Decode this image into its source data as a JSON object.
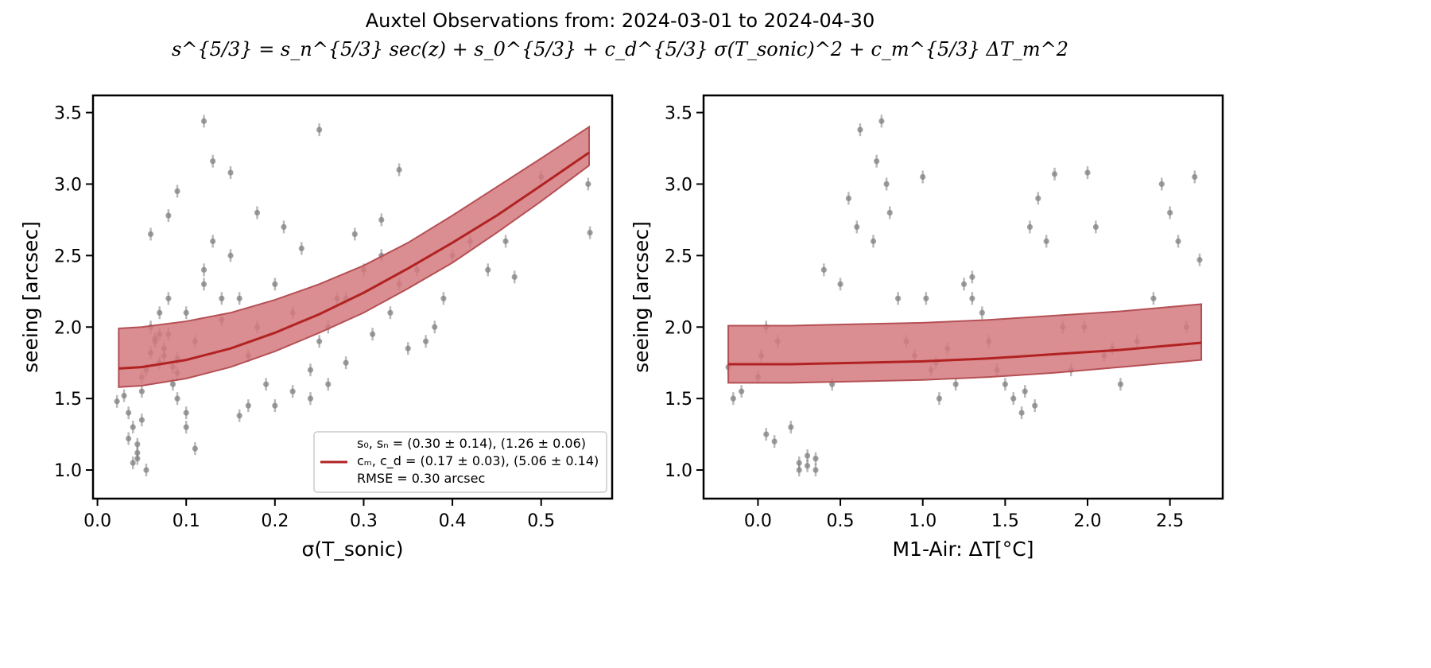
{
  "figure": {
    "title_line1": "Auxtel Observations from: 2024-03-01 to 2024-04-30",
    "title_line2": "s^{5/3} = s_n^{5/3} sec(z) + s_0^{5/3} + c_d^{5/3} σ(T_sonic)^2 + c_m^{5/3} ΔT_m^2"
  },
  "colors": {
    "points": "#808080",
    "fit_line": "#b22222",
    "band_fill": "#d47a7e",
    "band_edge": "#b55055"
  },
  "chart_data": [
    {
      "type": "scatter",
      "xlabel": "σ(T_sonic)",
      "ylabel": "seeing [arcsec]",
      "xlim": [
        -0.005,
        0.58
      ],
      "ylim": [
        0.8,
        3.62
      ],
      "xticks": [
        0.0,
        0.1,
        0.2,
        0.3,
        0.4,
        0.5
      ],
      "xtick_labels": [
        "0.0",
        "0.1",
        "0.2",
        "0.3",
        "0.4",
        "0.5"
      ],
      "yticks": [
        1.0,
        1.5,
        2.0,
        2.5,
        3.0,
        3.5
      ],
      "ytick_labels": [
        "1.0",
        "1.5",
        "2.0",
        "2.5",
        "3.0",
        "3.5"
      ],
      "grid": false,
      "legend_position": "lower-right",
      "legend": [
        "s₀, sₙ = (0.30 ± 0.14), (1.26 ± 0.06)",
        "cₘ, c_d = (0.17 ± 0.03), (5.06 ± 0.14)",
        "RMSE = 0.30 arcsec"
      ],
      "fit": {
        "x": [
          0.024,
          0.05,
          0.1,
          0.15,
          0.2,
          0.25,
          0.3,
          0.35,
          0.4,
          0.45,
          0.5,
          0.554
        ],
        "y": [
          1.71,
          1.72,
          1.77,
          1.85,
          1.96,
          2.09,
          2.24,
          2.41,
          2.59,
          2.78,
          2.99,
          3.22
        ],
        "band_lower": [
          1.58,
          1.59,
          1.64,
          1.72,
          1.83,
          1.96,
          2.1,
          2.27,
          2.45,
          2.66,
          2.88,
          3.13
        ],
        "band_upper": [
          1.99,
          2.0,
          2.04,
          2.1,
          2.19,
          2.3,
          2.43,
          2.59,
          2.78,
          2.98,
          3.18,
          3.4
        ]
      },
      "points": {
        "x": [
          0.022,
          0.03,
          0.035,
          0.04,
          0.045,
          0.05,
          0.055,
          0.06,
          0.065,
          0.07,
          0.075,
          0.08,
          0.085,
          0.09,
          0.035,
          0.04,
          0.045,
          0.05,
          0.06,
          0.07,
          0.08,
          0.09,
          0.1,
          0.11,
          0.12,
          0.13,
          0.15,
          0.16,
          0.17,
          0.18,
          0.2,
          0.22,
          0.24,
          0.25,
          0.26,
          0.28,
          0.3,
          0.32,
          0.34,
          0.36,
          0.38,
          0.4,
          0.42,
          0.44,
          0.46,
          0.47,
          0.5,
          0.553,
          0.555,
          0.12,
          0.13,
          0.15,
          0.25,
          0.09,
          0.08,
          0.06,
          0.1,
          0.11,
          0.14,
          0.18,
          0.21,
          0.23,
          0.27,
          0.31,
          0.33,
          0.35,
          0.37,
          0.39,
          0.29,
          0.19,
          0.17,
          0.16,
          0.24,
          0.26,
          0.28,
          0.32,
          0.34,
          0.12,
          0.14,
          0.2,
          0.22,
          0.05,
          0.07,
          0.09,
          0.045,
          0.055,
          0.065,
          0.075,
          0.085,
          0.1
        ],
        "y": [
          1.48,
          1.52,
          1.22,
          1.05,
          1.08,
          1.55,
          1.7,
          1.82,
          1.9,
          1.75,
          1.85,
          1.95,
          1.6,
          1.78,
          1.4,
          1.3,
          1.18,
          1.65,
          2.0,
          2.1,
          2.2,
          1.5,
          1.4,
          1.9,
          2.3,
          2.6,
          2.5,
          2.2,
          1.8,
          2.0,
          2.3,
          2.1,
          1.7,
          1.9,
          1.6,
          2.2,
          2.4,
          2.5,
          2.3,
          2.4,
          2.0,
          2.5,
          2.6,
          2.4,
          2.6,
          2.35,
          3.05,
          3.0,
          2.66,
          3.44,
          3.16,
          3.08,
          3.38,
          2.95,
          2.78,
          2.65,
          1.3,
          1.15,
          2.05,
          2.8,
          2.7,
          2.55,
          2.2,
          1.95,
          2.1,
          1.85,
          1.9,
          2.2,
          2.65,
          1.6,
          1.45,
          1.38,
          1.5,
          2.0,
          1.75,
          2.75,
          3.1,
          2.4,
          2.2,
          1.45,
          1.55,
          1.35,
          1.95,
          1.68,
          1.12,
          1.0,
          1.92,
          1.8,
          1.72,
          2.1
        ]
      }
    },
    {
      "type": "scatter",
      "xlabel": "M1-Air: ΔT[°C]",
      "ylabel": "seeing [arcsec]",
      "xlim": [
        -0.33,
        2.82
      ],
      "ylim": [
        0.8,
        3.62
      ],
      "xticks": [
        0.0,
        0.5,
        1.0,
        1.5,
        2.0,
        2.5
      ],
      "xtick_labels": [
        "0.0",
        "0.5",
        "1.0",
        "1.5",
        "2.0",
        "2.5"
      ],
      "yticks": [
        1.0,
        1.5,
        2.0,
        2.5,
        3.0,
        3.5
      ],
      "ytick_labels": [
        "1.0",
        "1.5",
        "2.0",
        "2.5",
        "3.0",
        "3.5"
      ],
      "grid": false,
      "fit": {
        "x": [
          -0.18,
          0.2,
          0.6,
          1.0,
          1.4,
          1.8,
          2.2,
          2.69
        ],
        "y": [
          1.74,
          1.74,
          1.75,
          1.76,
          1.78,
          1.81,
          1.84,
          1.89
        ],
        "band_lower": [
          1.61,
          1.61,
          1.62,
          1.63,
          1.65,
          1.68,
          1.72,
          1.77
        ],
        "band_upper": [
          2.01,
          2.01,
          2.02,
          2.03,
          2.05,
          2.08,
          2.11,
          2.16
        ]
      },
      "points": {
        "x": [
          -0.18,
          -0.15,
          -0.1,
          0.0,
          0.05,
          0.1,
          0.2,
          0.25,
          0.3,
          0.35,
          0.4,
          0.5,
          0.55,
          0.6,
          0.7,
          0.72,
          0.75,
          0.8,
          0.85,
          0.9,
          0.95,
          1.0,
          1.05,
          1.1,
          1.15,
          1.2,
          1.25,
          1.3,
          1.4,
          1.45,
          1.5,
          1.55,
          1.6,
          1.65,
          1.7,
          1.75,
          1.8,
          1.85,
          1.9,
          2.0,
          2.05,
          2.1,
          2.2,
          2.3,
          2.4,
          2.45,
          2.5,
          2.55,
          2.6,
          2.65,
          2.68,
          0.25,
          0.3,
          0.35,
          0.05,
          0.02,
          0.12,
          0.45,
          0.62,
          0.78,
          1.62,
          1.68,
          1.98,
          1.36,
          1.02,
          1.08,
          1.3,
          2.15
        ],
        "y": [
          1.72,
          1.5,
          1.55,
          1.65,
          1.25,
          1.2,
          1.3,
          1.05,
          1.1,
          1.08,
          2.4,
          2.3,
          2.9,
          2.7,
          2.6,
          3.16,
          3.44,
          2.8,
          2.2,
          1.9,
          1.8,
          3.05,
          1.7,
          1.5,
          1.85,
          1.6,
          2.3,
          2.2,
          1.9,
          1.7,
          1.6,
          1.5,
          1.4,
          2.7,
          2.9,
          2.6,
          3.07,
          2.0,
          1.7,
          3.08,
          2.7,
          1.8,
          1.6,
          1.9,
          2.2,
          3.0,
          2.8,
          2.6,
          2.0,
          3.05,
          2.47,
          1.0,
          1.03,
          1.0,
          2.0,
          1.8,
          1.9,
          1.6,
          3.38,
          3.0,
          1.55,
          1.45,
          2.0,
          2.1,
          2.2,
          1.75,
          2.35,
          1.85
        ]
      }
    }
  ]
}
